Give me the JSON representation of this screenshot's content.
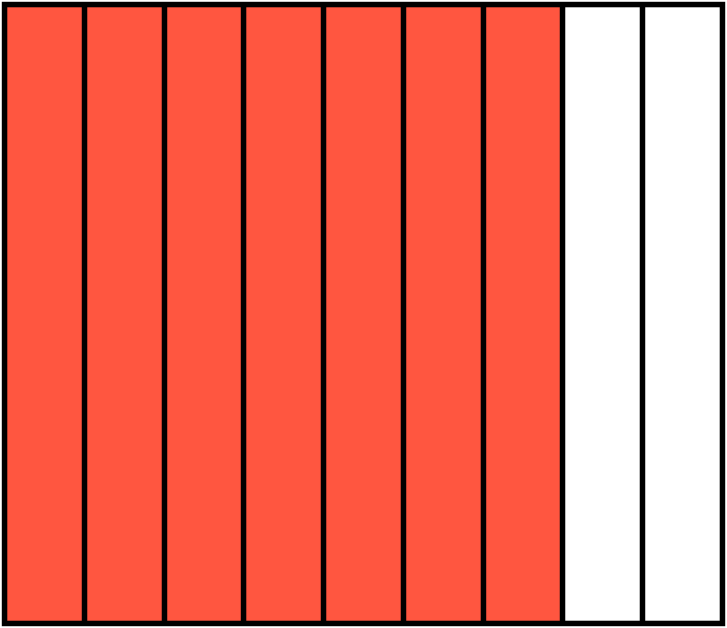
{
  "fraction_model": {
    "total_parts": 9,
    "shaded_parts": 7,
    "colors": {
      "shaded": "#FF5640",
      "unshaded": "#FFFFFF",
      "outline": "#000000"
    }
  }
}
